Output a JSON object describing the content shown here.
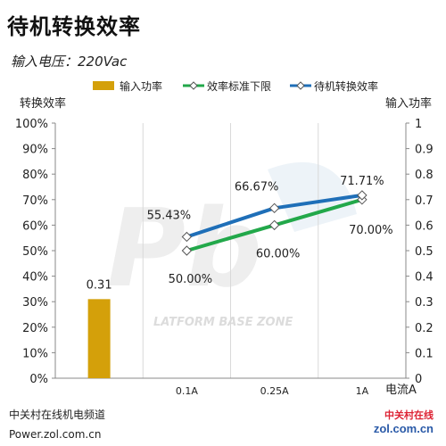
{
  "header": {
    "title": "待机转换效率",
    "subtitle": "输入电压：220Vac"
  },
  "footer": {
    "source_line1": "中关村在线机电频道",
    "source_line2": "Power.zol.com.cn",
    "logo_text_cn": "中关村在线",
    "logo_text_en": "zol.com.cn"
  },
  "watermark": {
    "text": "LATFORM BASE ZONE"
  },
  "colors": {
    "bar": "#D4A00A",
    "efficiency_line": "#1F6FB8",
    "standard_line": "#22A84A",
    "grid": "#D9D9D9",
    "axis": "#888888"
  },
  "chart_data": {
    "type": "bar+line",
    "categories": [
      "",
      "0.1A",
      "0.25A",
      "1A"
    ],
    "xlabel": "电流A",
    "ylabel_left": "转换效率",
    "ylabel_right": "输入功率",
    "ylim_left": [
      0,
      100
    ],
    "ylim_right": [
      0,
      1
    ],
    "left_ticks": [
      "0%",
      "10%",
      "20%",
      "30%",
      "40%",
      "50%",
      "60%",
      "70%",
      "80%",
      "90%",
      "100%"
    ],
    "right_ticks": [
      "0",
      "0.1",
      "0.2",
      "0.3",
      "0.4",
      "0.5",
      "0.6",
      "0.7",
      "0.8",
      "0.9",
      "1"
    ],
    "grid": true,
    "legend_position": "top",
    "series": [
      {
        "name": "输入功率",
        "kind": "bar",
        "axis": "right",
        "values": [
          0.31,
          null,
          null,
          null
        ],
        "labels": [
          "0.31",
          "",
          "",
          ""
        ]
      },
      {
        "name": "效率标准下限",
        "kind": "line",
        "axis": "left",
        "values": [
          null,
          50.0,
          60.0,
          70.0
        ],
        "labels": [
          "",
          "50.00%",
          "60.00%",
          "70.00%"
        ]
      },
      {
        "name": "待机转换效率",
        "kind": "line",
        "axis": "left",
        "values": [
          null,
          55.43,
          66.67,
          71.71
        ],
        "labels": [
          "",
          "55.43%",
          "66.67%",
          "71.71%"
        ]
      }
    ]
  }
}
